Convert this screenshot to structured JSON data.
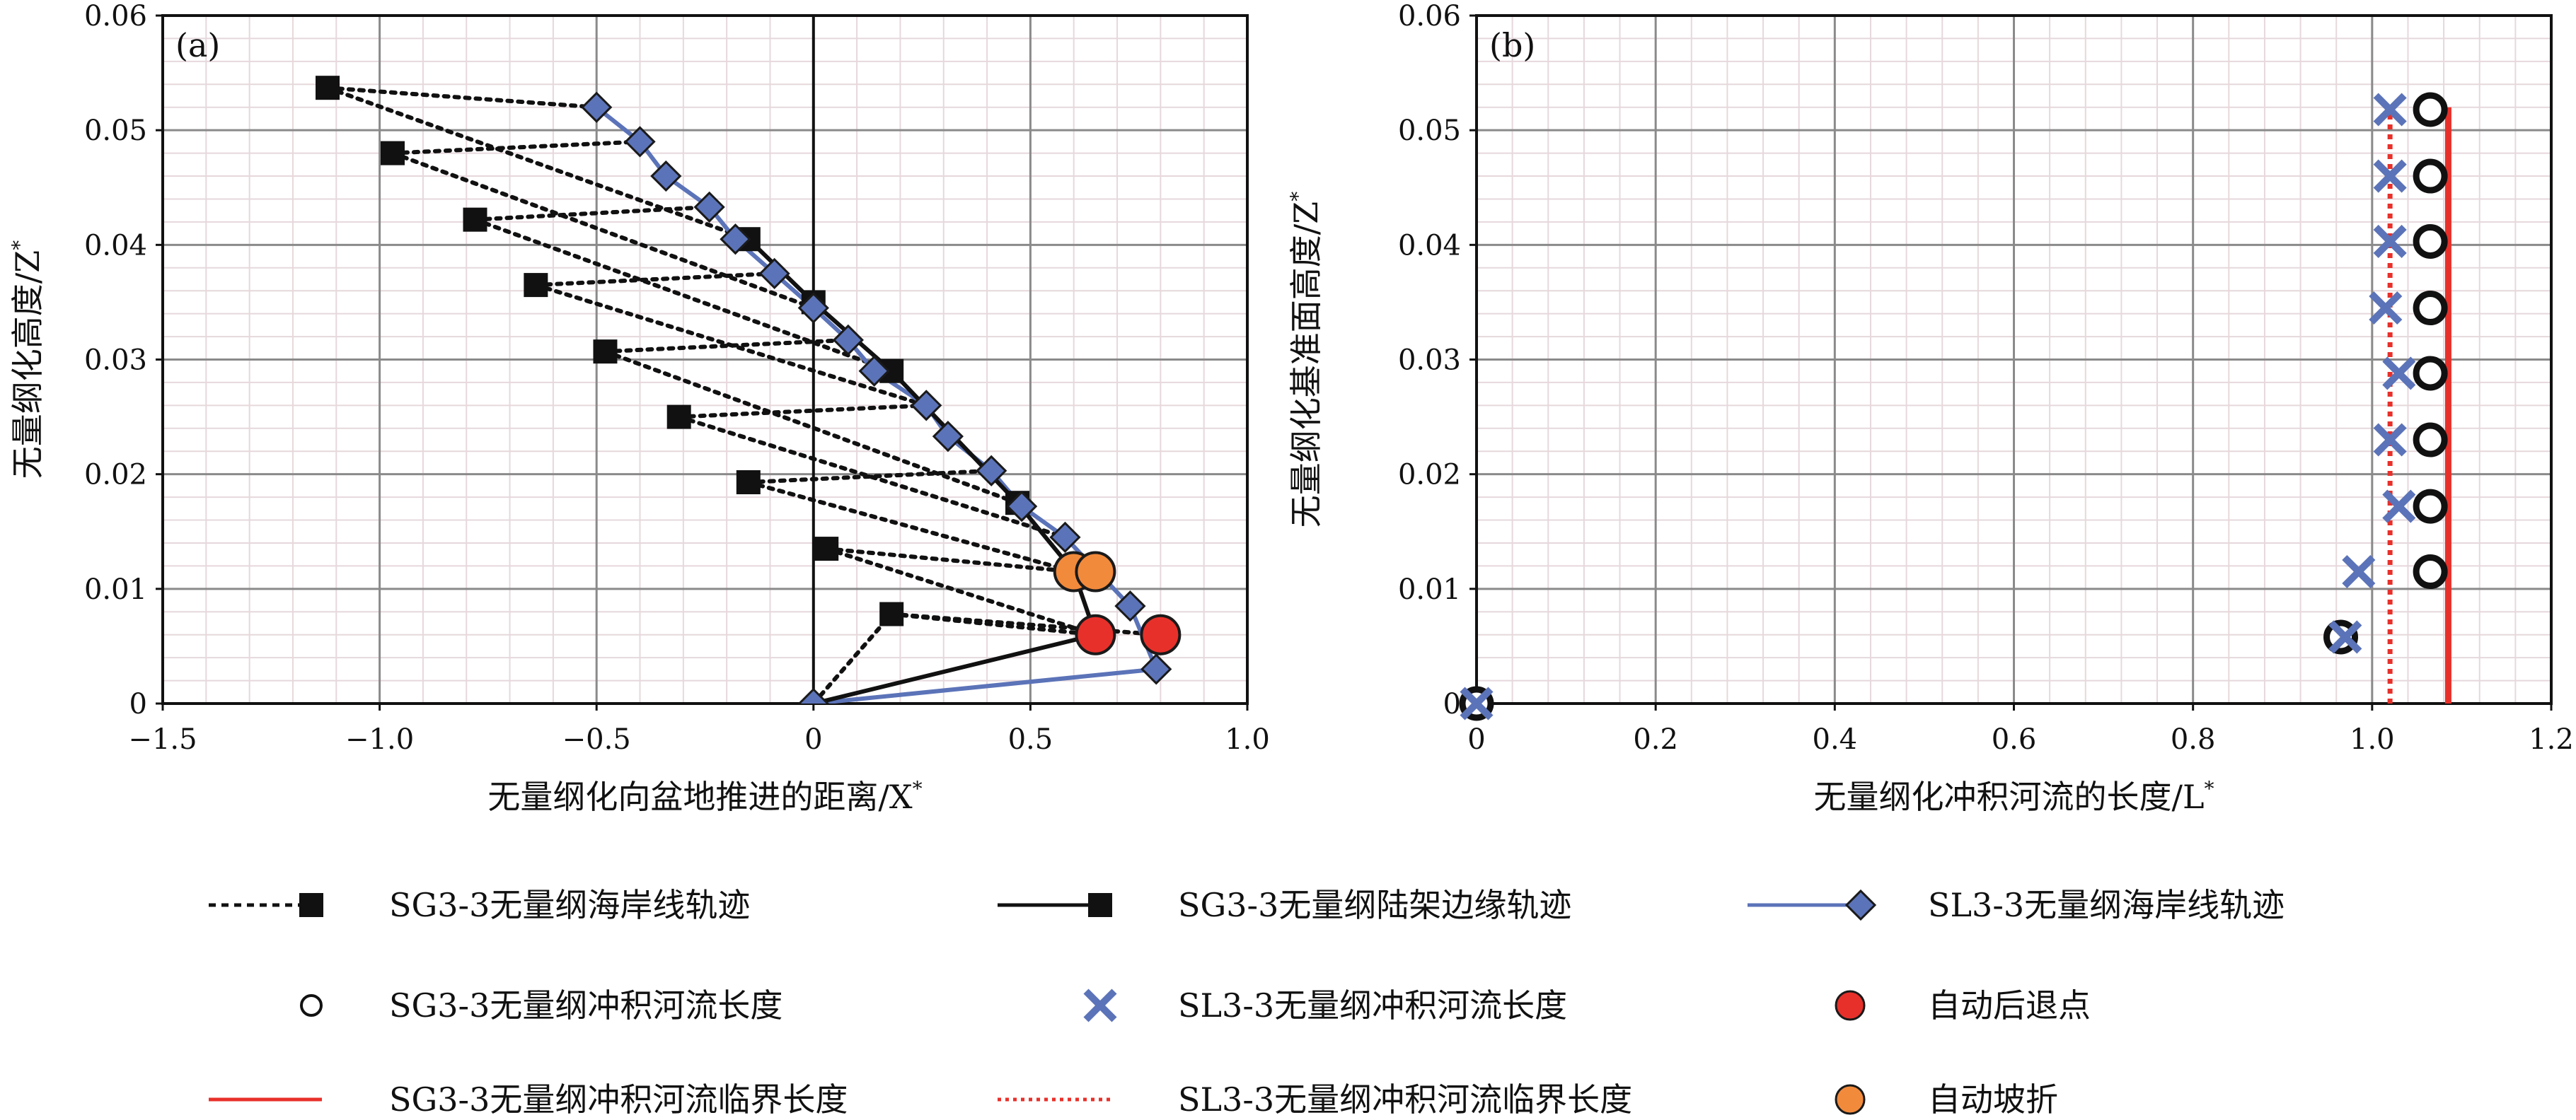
{
  "chart_data": [
    {
      "type": "scatter",
      "panel_label": "(a)",
      "xlabel": "无量纲化向盆地推进的距离/X*",
      "ylabel": "无量纲化高度/Z*",
      "xlim": [
        -1.5,
        1.0
      ],
      "ylim": [
        0,
        0.06
      ],
      "xticks": [
        "−1.5",
        "−1.0",
        "−0.5",
        "0",
        "0.5",
        "1.0"
      ],
      "yticks": [
        "0",
        "0.01",
        "0.02",
        "0.03",
        "0.04",
        "0.05",
        "0.06"
      ],
      "grid": true,
      "series": [
        {
          "name": "SG3-3无量纲海岸线轨迹",
          "style": "dotted-square",
          "x": [
            -1.12,
            -0.97,
            -0.78,
            -0.64,
            -0.48,
            -0.31,
            -0.15,
            0.03,
            0.18
          ],
          "y": [
            0.0537,
            0.048,
            0.0422,
            0.0365,
            0.0307,
            0.025,
            0.0193,
            0.0135,
            0.0078
          ]
        },
        {
          "name": "SG3-3无量纲陆架边缘轨迹",
          "style": "solid-square",
          "x": [
            0.0,
            0.65,
            0.6,
            0.47,
            0.18,
            0.0,
            -0.15
          ],
          "y": [
            0.0,
            0.006,
            0.0115,
            0.0175,
            0.029,
            0.035,
            0.0405
          ]
        },
        {
          "name": "SL3-3无量纲海岸线轨迹",
          "style": "diamond",
          "x": [
            0.0,
            0.79,
            0.73,
            0.58,
            0.48,
            0.41,
            0.31,
            0.26,
            0.14,
            0.08,
            0.0,
            -0.09,
            -0.18,
            -0.24,
            -0.34,
            -0.4,
            -0.5
          ],
          "y": [
            0.0,
            0.003,
            0.0085,
            0.0145,
            0.0172,
            0.0203,
            0.0233,
            0.026,
            0.029,
            0.0317,
            0.0345,
            0.0375,
            0.0405,
            0.0433,
            0.046,
            0.049,
            0.052
          ]
        },
        {
          "name": "自动后退点",
          "style": "red-circle",
          "x": [
            0.65,
            0.8
          ],
          "y": [
            0.006,
            0.006
          ]
        },
        {
          "name": "自动坡折",
          "style": "orange-circle",
          "x": [
            0.6,
            0.65
          ],
          "y": [
            0.0115,
            0.0115
          ]
        }
      ],
      "connectors": [
        {
          "x": [
            -1.12,
            -0.5
          ],
          "y": [
            0.0537,
            0.052
          ]
        },
        {
          "x": [
            -1.12,
            -0.15
          ],
          "y": [
            0.0537,
            0.0405
          ]
        },
        {
          "x": [
            -0.97,
            -0.4
          ],
          "y": [
            0.048,
            0.049
          ]
        },
        {
          "x": [
            -0.97,
            0.0
          ],
          "y": [
            0.048,
            0.0345
          ]
        },
        {
          "x": [
            -0.78,
            -0.24
          ],
          "y": [
            0.0422,
            0.0433
          ]
        },
        {
          "x": [
            -0.78,
            0.18
          ],
          "y": [
            0.0422,
            0.029
          ]
        },
        {
          "x": [
            -0.64,
            -0.09
          ],
          "y": [
            0.0365,
            0.0375
          ]
        },
        {
          "x": [
            -0.64,
            0.26
          ],
          "y": [
            0.0365,
            0.026
          ]
        },
        {
          "x": [
            -0.48,
            0.08
          ],
          "y": [
            0.0307,
            0.0317
          ]
        },
        {
          "x": [
            -0.48,
            0.47
          ],
          "y": [
            0.0307,
            0.0175
          ]
        },
        {
          "x": [
            -0.31,
            0.26
          ],
          "y": [
            0.025,
            0.026
          ]
        },
        {
          "x": [
            -0.31,
            0.58
          ],
          "y": [
            0.025,
            0.0145
          ]
        },
        {
          "x": [
            -0.15,
            0.41
          ],
          "y": [
            0.0193,
            0.0203
          ]
        },
        {
          "x": [
            -0.15,
            0.6
          ],
          "y": [
            0.0193,
            0.0115
          ]
        },
        {
          "x": [
            0.03,
            0.6
          ],
          "y": [
            0.0135,
            0.0115
          ]
        },
        {
          "x": [
            0.03,
            0.65
          ],
          "y": [
            0.0135,
            0.006
          ]
        },
        {
          "x": [
            0.18,
            0.65
          ],
          "y": [
            0.0078,
            0.006
          ]
        },
        {
          "x": [
            0.18,
            0.8
          ],
          "y": [
            0.0078,
            0.006
          ]
        },
        {
          "x": [
            0.0,
            0.18
          ],
          "y": [
            0.0,
            0.0078
          ]
        }
      ]
    },
    {
      "type": "scatter",
      "panel_label": "(b)",
      "xlabel": "无量纲化冲积河流的长度/L*",
      "ylabel": "无量纲化基准面高度/Z*",
      "xlim": [
        0,
        1.2
      ],
      "ylim": [
        0,
        0.06
      ],
      "xticks": [
        "0",
        "0.2",
        "0.4",
        "0.6",
        "0.8",
        "1.0",
        "1.2"
      ],
      "yticks": [
        "0",
        "0.01",
        "0.02",
        "0.03",
        "0.04",
        "0.05",
        "0.06"
      ],
      "grid": true,
      "series": [
        {
          "name": "SG3-3无量纲冲积河流长度",
          "style": "open-circle",
          "x": [
            0.0,
            0.965,
            1.065,
            1.065,
            1.065,
            1.065,
            1.065,
            1.065,
            1.065,
            1.065
          ],
          "y": [
            0.0,
            0.0058,
            0.0115,
            0.0172,
            0.023,
            0.0288,
            0.0345,
            0.0403,
            0.046,
            0.0518
          ]
        },
        {
          "name": "SL3-3无量纲冲积河流长度",
          "style": "x",
          "x": [
            0.0,
            0.97,
            0.985,
            1.03,
            1.02,
            1.03,
            1.015,
            1.02,
            1.02,
            1.02
          ],
          "y": [
            0.0,
            0.0058,
            0.0115,
            0.0172,
            0.023,
            0.0288,
            0.0345,
            0.0403,
            0.046,
            0.0518
          ]
        }
      ],
      "vlines": [
        {
          "name": "SG3-3无量纲冲积河流临界长度",
          "x": 1.085,
          "y": [
            0,
            0.052
          ],
          "style": "solid-red"
        },
        {
          "name": "SL3-3无量纲冲积河流临界长度",
          "x": 1.02,
          "y": [
            0,
            0.052
          ],
          "style": "dotted-red"
        }
      ]
    }
  ],
  "legend": [
    {
      "label": "SG3-3无量纲海岸线轨迹",
      "marker": "dotted-square"
    },
    {
      "label": "SG3-3无量纲陆架边缘轨迹",
      "marker": "solid-square"
    },
    {
      "label": "SL3-3无量纲海岸线轨迹",
      "marker": "diamond"
    },
    {
      "label": "SG3-3无量纲冲积河流长度",
      "marker": "open-circle"
    },
    {
      "label": "SL3-3无量纲冲积河流长度",
      "marker": "x"
    },
    {
      "label": "自动后退点",
      "marker": "red-circle"
    },
    {
      "label": "SG3-3无量纲冲积河流临界长度",
      "marker": "solid-red"
    },
    {
      "label": "SL3-3无量纲冲积河流临界长度",
      "marker": "dotted-red"
    },
    {
      "label": "自动坡折",
      "marker": "orange-circle"
    }
  ],
  "colors": {
    "black": "#111111",
    "blue": "#5b73b8",
    "diamond_fill": "#5b73b8",
    "red": "#e8302a",
    "orange": "#f28a3c",
    "grid_major": "#8a8a8a",
    "grid_minor": "#e6d8dc"
  }
}
